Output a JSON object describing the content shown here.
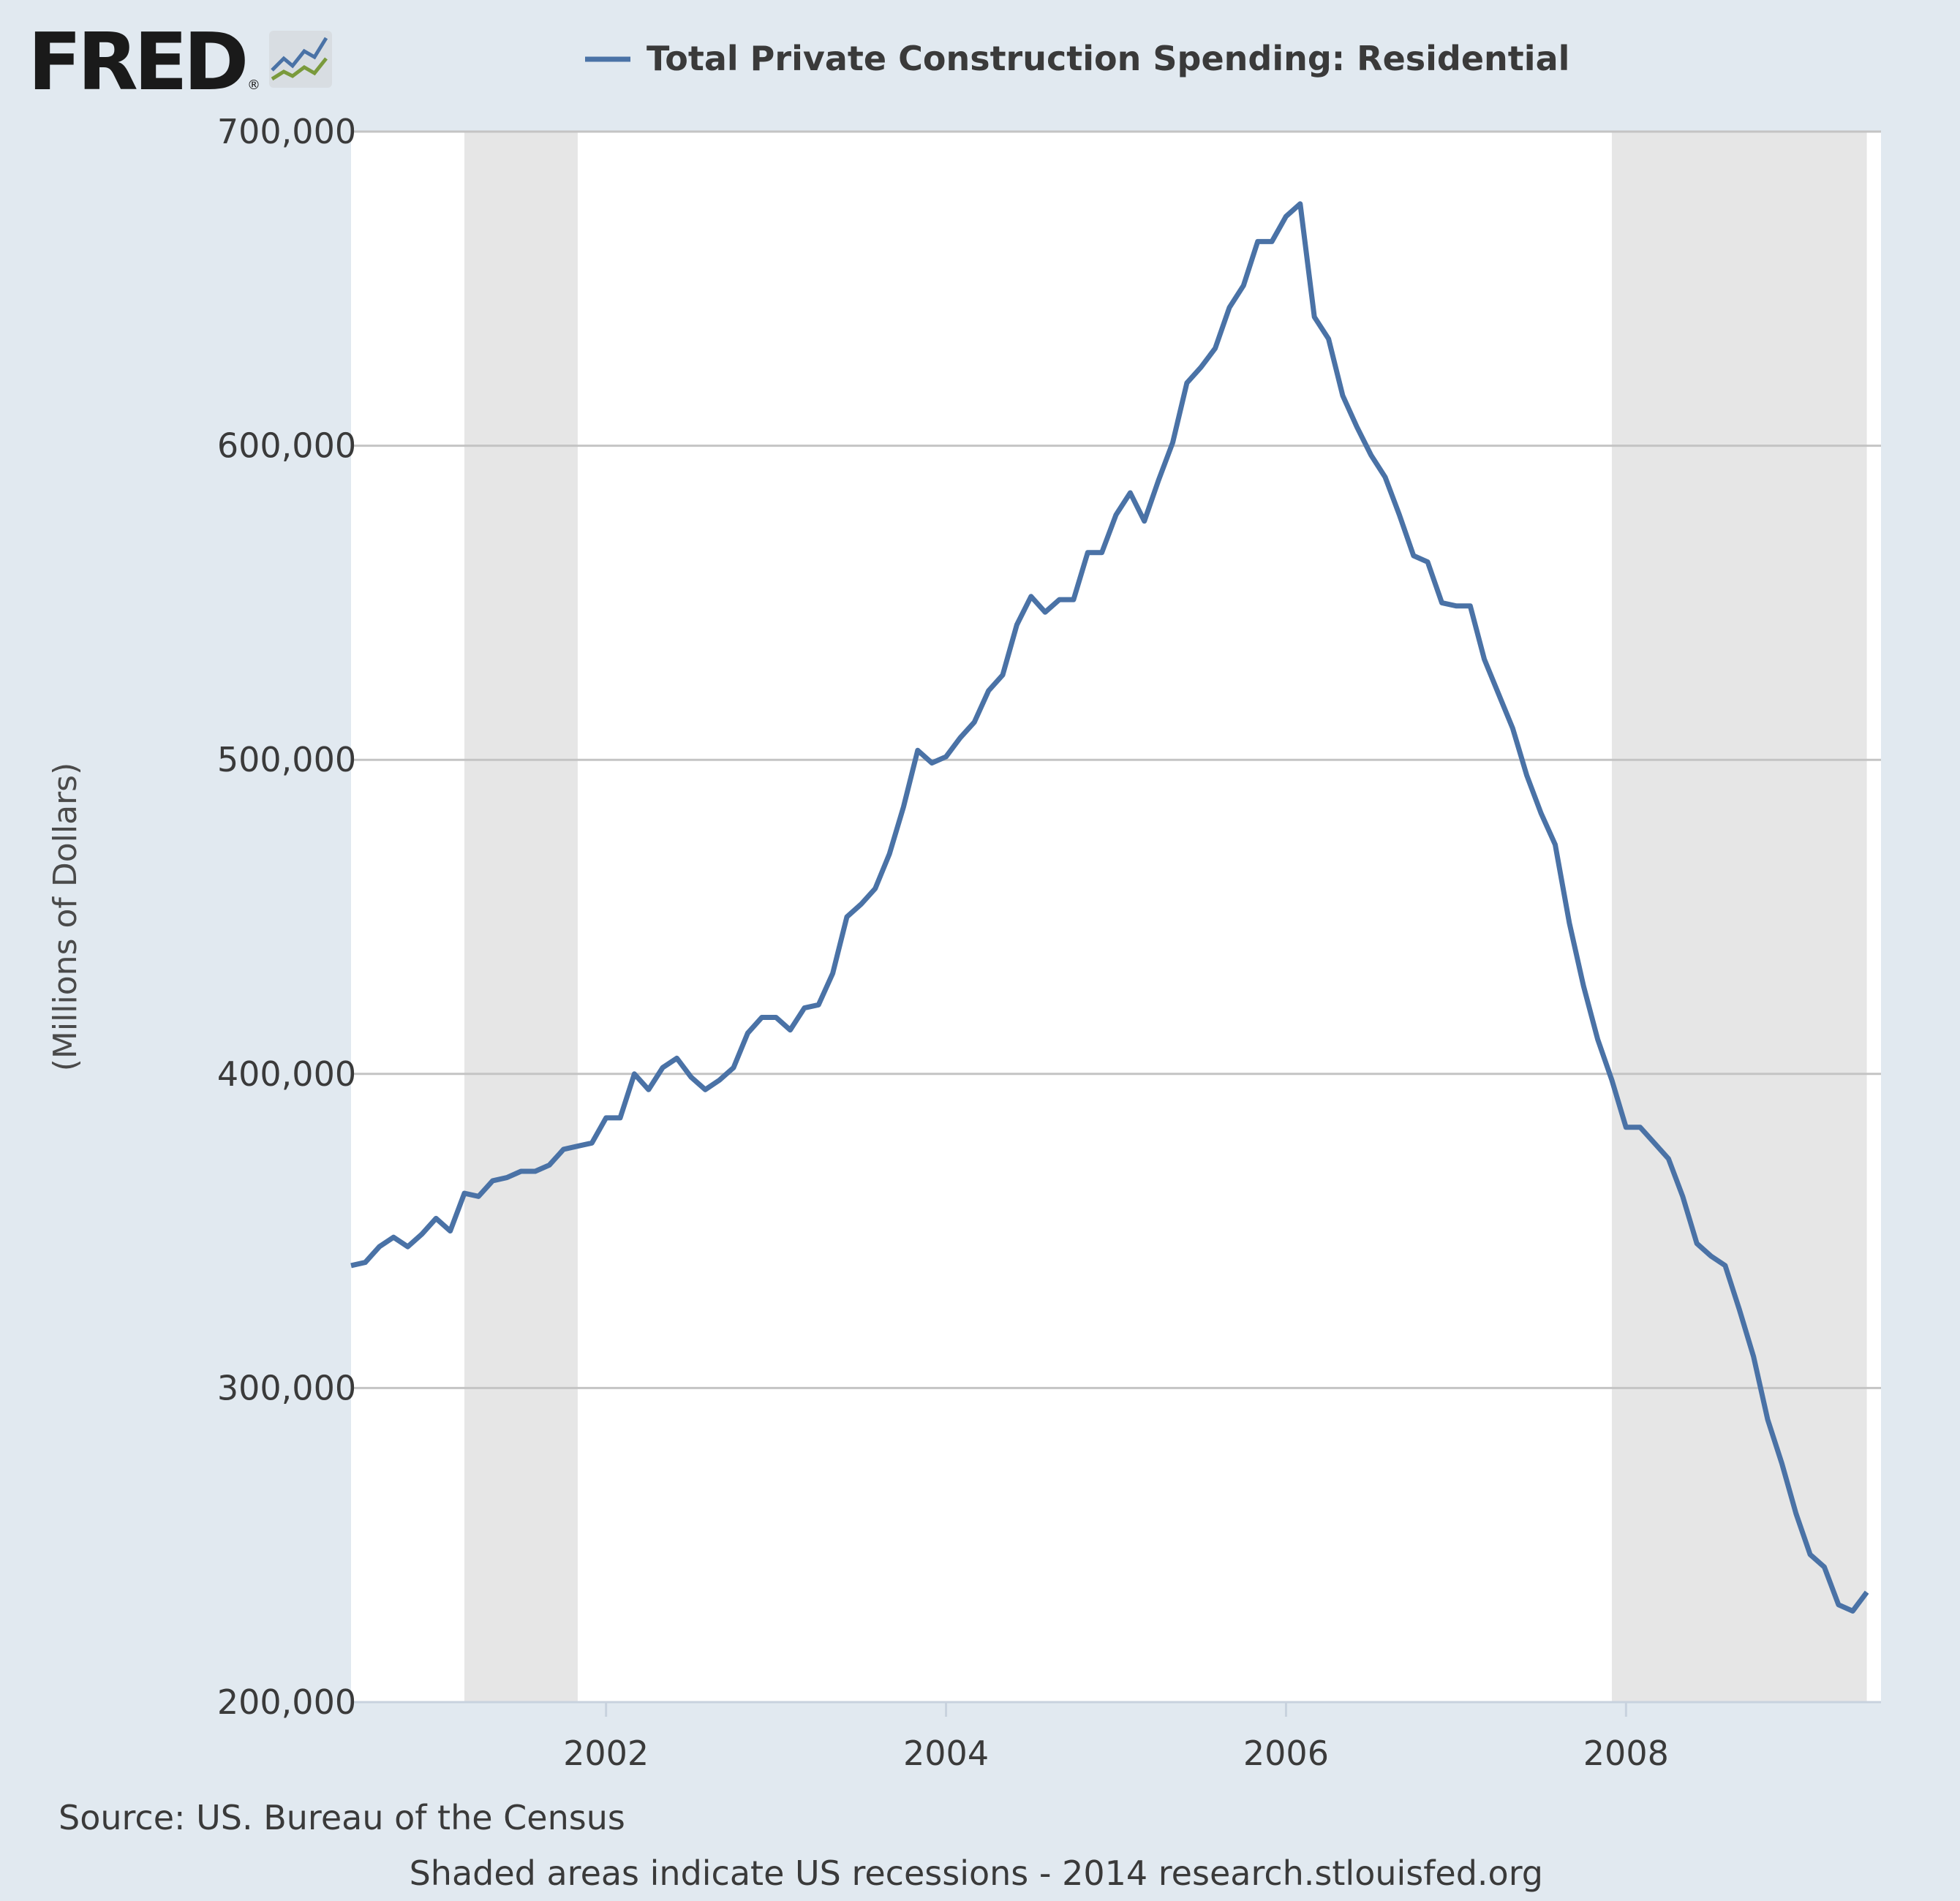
{
  "logo": {
    "text": "FRED",
    "reg": "®"
  },
  "source_note": "Source: US. Bureau of the Census",
  "footer_note": "Shaded areas indicate US recessions - 2014 research.stlouisfed.org",
  "colors": {
    "line": "#4a72a6",
    "recession": "#e6e6e6",
    "grid": "#c4c4c4",
    "background": "#e1e9f0",
    "plot": "#ffffff"
  },
  "chart_data": {
    "type": "line",
    "title": "",
    "xlabel": "",
    "ylabel": "(Millions of Dollars)",
    "xlim": [
      "2000-07",
      "2009-07"
    ],
    "ylim": [
      200000,
      700000
    ],
    "y_ticks": [
      {
        "value": 200000,
        "label": "200,000"
      },
      {
        "value": 300000,
        "label": "300,000"
      },
      {
        "value": 400000,
        "label": "400,000"
      },
      {
        "value": 500000,
        "label": "500,000"
      },
      {
        "value": 600000,
        "label": "600,000"
      },
      {
        "value": 700000,
        "label": "700,000"
      }
    ],
    "x_ticks": [
      {
        "value": "2002-01",
        "label": "2002"
      },
      {
        "value": "2004-01",
        "label": "2004"
      },
      {
        "value": "2006-01",
        "label": "2006"
      },
      {
        "value": "2008-01",
        "label": "2008"
      }
    ],
    "grid": true,
    "legend": "top",
    "recessions": [
      {
        "start": "2001-03",
        "end": "2001-11"
      },
      {
        "start": "2007-12",
        "end": "2009-06"
      }
    ],
    "series": [
      {
        "name": "Total Private Construction Spending: Residential",
        "points": [
          [
            "2000-07",
            339000
          ],
          [
            "2000-08",
            340000
          ],
          [
            "2000-09",
            345000
          ],
          [
            "2000-10",
            348000
          ],
          [
            "2000-11",
            345000
          ],
          [
            "2000-12",
            349000
          ],
          [
            "2001-01",
            354000
          ],
          [
            "2001-02",
            350000
          ],
          [
            "2001-03",
            362000
          ],
          [
            "2001-04",
            361000
          ],
          [
            "2001-05",
            366000
          ],
          [
            "2001-06",
            367000
          ],
          [
            "2001-07",
            369000
          ],
          [
            "2001-08",
            369000
          ],
          [
            "2001-09",
            371000
          ],
          [
            "2001-10",
            376000
          ],
          [
            "2001-11",
            377000
          ],
          [
            "2001-12",
            378000
          ],
          [
            "2002-01",
            386000
          ],
          [
            "2002-02",
            386000
          ],
          [
            "2002-03",
            400000
          ],
          [
            "2002-04",
            395000
          ],
          [
            "2002-05",
            402000
          ],
          [
            "2002-06",
            405000
          ],
          [
            "2002-07",
            399000
          ],
          [
            "2002-08",
            395000
          ],
          [
            "2002-09",
            398000
          ],
          [
            "2002-10",
            402000
          ],
          [
            "2002-11",
            413000
          ],
          [
            "2002-12",
            418000
          ],
          [
            "2003-01",
            418000
          ],
          [
            "2003-02",
            414000
          ],
          [
            "2003-03",
            421000
          ],
          [
            "2003-04",
            422000
          ],
          [
            "2003-05",
            432000
          ],
          [
            "2003-06",
            450000
          ],
          [
            "2003-07",
            454000
          ],
          [
            "2003-08",
            459000
          ],
          [
            "2003-09",
            470000
          ],
          [
            "2003-10",
            485000
          ],
          [
            "2003-11",
            503000
          ],
          [
            "2003-12",
            499000
          ],
          [
            "2004-01",
            501000
          ],
          [
            "2004-02",
            507000
          ],
          [
            "2004-03",
            512000
          ],
          [
            "2004-04",
            522000
          ],
          [
            "2004-05",
            527000
          ],
          [
            "2004-06",
            543000
          ],
          [
            "2004-07",
            552000
          ],
          [
            "2004-08",
            547000
          ],
          [
            "2004-09",
            551000
          ],
          [
            "2004-10",
            551000
          ],
          [
            "2004-11",
            566000
          ],
          [
            "2004-12",
            566000
          ],
          [
            "2005-01",
            578000
          ],
          [
            "2005-02",
            585000
          ],
          [
            "2005-03",
            576000
          ],
          [
            "2005-04",
            589000
          ],
          [
            "2005-05",
            601000
          ],
          [
            "2005-06",
            620000
          ],
          [
            "2005-07",
            625000
          ],
          [
            "2005-08",
            631000
          ],
          [
            "2005-09",
            644000
          ],
          [
            "2005-10",
            651000
          ],
          [
            "2005-11",
            665000
          ],
          [
            "2005-12",
            665000
          ],
          [
            "2006-01",
            673000
          ],
          [
            "2006-02",
            677000
          ],
          [
            "2006-03",
            641000
          ],
          [
            "2006-04",
            634000
          ],
          [
            "2006-05",
            616000
          ],
          [
            "2006-06",
            606000
          ],
          [
            "2006-07",
            597000
          ],
          [
            "2006-08",
            590000
          ],
          [
            "2006-09",
            578000
          ],
          [
            "2006-10",
            565000
          ],
          [
            "2006-11",
            563000
          ],
          [
            "2006-12",
            550000
          ],
          [
            "2007-01",
            549000
          ],
          [
            "2007-02",
            549000
          ],
          [
            "2007-03",
            532000
          ],
          [
            "2007-04",
            521000
          ],
          [
            "2007-05",
            510000
          ],
          [
            "2007-06",
            495000
          ],
          [
            "2007-07",
            483000
          ],
          [
            "2007-08",
            473000
          ],
          [
            "2007-09",
            448000
          ],
          [
            "2007-10",
            428000
          ],
          [
            "2007-11",
            411000
          ],
          [
            "2007-12",
            398000
          ],
          [
            "2008-01",
            383000
          ],
          [
            "2008-02",
            383000
          ],
          [
            "2008-03",
            378000
          ],
          [
            "2008-04",
            373000
          ],
          [
            "2008-05",
            361000
          ],
          [
            "2008-06",
            346000
          ],
          [
            "2008-07",
            342000
          ],
          [
            "2008-08",
            339000
          ],
          [
            "2008-09",
            325000
          ],
          [
            "2008-10",
            310000
          ],
          [
            "2008-11",
            290000
          ],
          [
            "2008-12",
            276000
          ],
          [
            "2009-01",
            260000
          ],
          [
            "2009-02",
            247000
          ],
          [
            "2009-03",
            243000
          ],
          [
            "2009-04",
            231000
          ],
          [
            "2009-05",
            229000
          ],
          [
            "2009-06",
            235000
          ]
        ]
      }
    ]
  }
}
